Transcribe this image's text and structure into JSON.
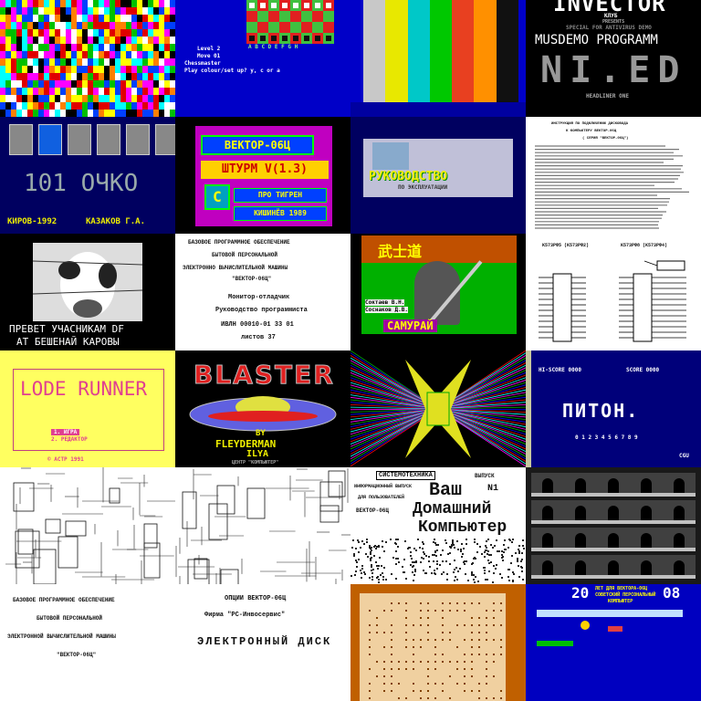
{
  "tiles": {
    "chess": {
      "level": "Level 2",
      "move": "Move 01",
      "title": "Chessmaster",
      "prompt": "Play colour/set up? y, c or a",
      "files": "A B C D E F G H"
    },
    "invector": {
      "brand": "INVECTOR",
      "club": "КЛУБ",
      "site": "PRESENTS",
      "sub": "SPECIAL FOR ANTIVIRUS DEMO",
      "title": "MUSDEMO PROGRAMM",
      "logo": "NI.ED",
      "tag": "HEADLINER ONE"
    },
    "ochko": {
      "title": "101 ОЧКО",
      "left": "КИРОВ-1992",
      "right": "КАЗАКОВ Г.А."
    },
    "vector06": {
      "title": "ВЕКТОР-06Ц",
      "game": "ШТУРМ V(1.3)",
      "label": "ПРО ТИГРЕН",
      "city": "КИШИНЁВ 1989",
      "logo": "C"
    },
    "rukovodstvo": {
      "title": "РУКОВОДСТВО",
      "sub": "ПО ЭКСПЛУАТАЦИИ"
    },
    "instruction": {
      "head1": "ИНСТРУКЦИЯ ПО ПОДКЛЮЧЕНИЮ ДИСКОВОДА",
      "head2": "К КОМПЬЮТЕРУ ВЕКТОР-06Ц",
      "head3": "( СЕРИЯ \"ВЕКТОР-06Ц\")"
    },
    "cow": {
      "line1": "ПРЕВЕТ УЧАСНИКАМ DF",
      "line2": "АТ БЕШЕНАЙ КАРОВЫ"
    },
    "manual": {
      "l1": "БАЗОВОЕ ПРОГРАММНОЕ ОБЕСПЕЧЕНИЕ",
      "l2": "БЫТОВОЙ ПЕРСОНАЛЬНОЙ",
      "l3": "ЭЛЕКТРОННО ВЫЧИСЛИТЕЛЬНОЙ МАШИНЫ",
      "l4": "\"ВЕКТОР-06Ц\"",
      "l5": "Монитор-отладчик",
      "l6": "Руководство программиста",
      "l7": "ИВЛН 00010-01 33 01",
      "l8": "листов 37"
    },
    "samurai": {
      "title": "САМУРАЙ",
      "a1": "Соктаев В.Н.",
      "a2": "Соснаков Д.В.",
      "kanji": "武士道"
    },
    "schematic": {
      "lt": "K573PФ5 (K573РФ2)",
      "rt": "K573PФ8 (K573РФ4)"
    },
    "lode": {
      "title": "LODE RUNNER",
      "m1": "1. ИГРА",
      "m2": "2. РЕДАКТОР",
      "copy": "©  АСТР  1991"
    },
    "blaster": {
      "title": "BLASTER",
      "by": "BY",
      "a1": "FLEYDERMAN",
      "a2": "ILYA",
      "center": "ЦЕНТР \"КОМПЬЮТЕР\""
    },
    "python": {
      "hi": "HI-SCORE 0000",
      "score": "SCORE 0000",
      "title": "ПИТОН.",
      "digits": "0 1 2 3 4 5 6 7 8 9",
      "corner": "CGU"
    },
    "manual2": {
      "l1": "БАЗОВОЕ ПРОГРАММНОЕ ОБЕСПЕЧЕНИЕ",
      "l2": "БЫТОВОЙ ПЕРСОНАЛЬНОЙ",
      "l3": "ЭЛЕКТРОННОЙ ВЫЧИСЛИТЕЛЬНОЙ МАШИНЫ",
      "l4": "\"ВЕКТОР-06Ц\""
    },
    "disk": {
      "l1": "ОПЦИИ ВЕКТОР-06Ц",
      "l2": "Фирма \"РС-Инвосервис\"",
      "l3": "ЭЛЕКТРОННЫЙ ДИСК"
    },
    "magazine": {
      "top": "СИСТЕМОТЕХНИКА",
      "vyp": "ВЫПУСК",
      "info": "ИНФОРМАЦИОННЫЙ ВЫПУСК",
      "for": "ДЛЯ ПОЛЬЗОВАТЕЛЕЙ",
      "pc": "ВЕКТОР-06Ц",
      "t1": "Ваш",
      "t2": "Домашний",
      "t3": "Компьютер",
      "num": "N1"
    },
    "game20": {
      "n1": "20",
      "n2": "08",
      "l1": "ЛЕТ ДЛЯ ВЕКТОРА-06Ц",
      "l2": "СОВЕТСКИЙ ПЕРСОНАЛЬНЫЙ",
      "l3": "КОМПЬЮТЕР"
    }
  }
}
